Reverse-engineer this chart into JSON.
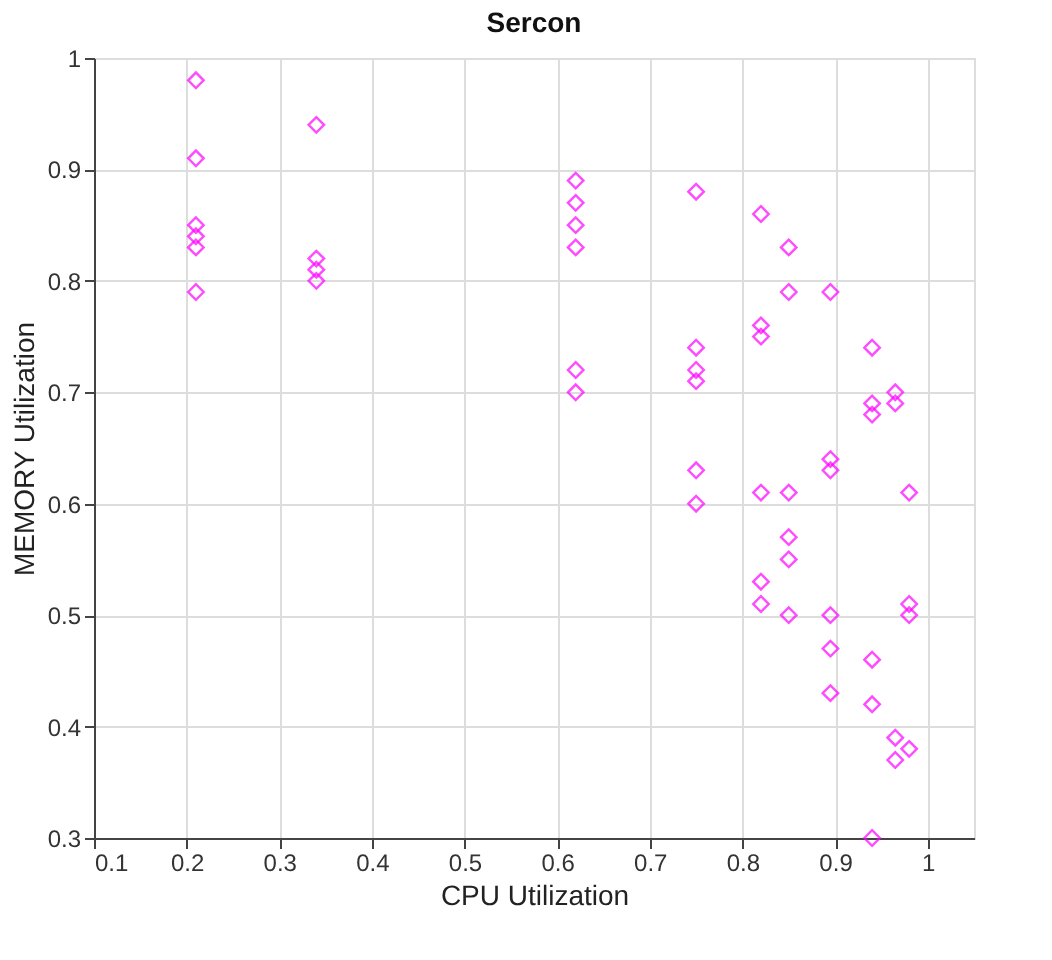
{
  "chart_data": {
    "type": "scatter",
    "title": "Sercon",
    "xlabel": "CPU Utilization",
    "ylabel": "MEMORY Utilization",
    "x": [
      0.21,
      0.21,
      0.21,
      0.21,
      0.21,
      0.21,
      0.34,
      0.34,
      0.34,
      0.34,
      0.62,
      0.62,
      0.62,
      0.62,
      0.62,
      0.62,
      0.75,
      0.75,
      0.75,
      0.75,
      0.75,
      0.75,
      0.82,
      0.82,
      0.82,
      0.82,
      0.82,
      0.82,
      0.85,
      0.85,
      0.85,
      0.85,
      0.85,
      0.85,
      0.895,
      0.895,
      0.895,
      0.895,
      0.895,
      0.895,
      0.94,
      0.94,
      0.94,
      0.94,
      0.94,
      0.94,
      0.965,
      0.965,
      0.965,
      0.965,
      0.98,
      0.98,
      0.98,
      0.98
    ],
    "series": [
      {
        "color": "#ff00ff",
        "values": [
          0.98,
          0.91,
          0.85,
          0.84,
          0.83,
          0.79,
          0.94,
          0.82,
          0.81,
          0.8,
          0.89,
          0.87,
          0.85,
          0.83,
          0.72,
          0.7,
          0.88,
          0.74,
          0.72,
          0.71,
          0.63,
          0.6,
          0.86,
          0.76,
          0.75,
          0.61,
          0.53,
          0.51,
          0.83,
          0.79,
          0.61,
          0.57,
          0.55,
          0.5,
          0.79,
          0.64,
          0.63,
          0.5,
          0.47,
          0.43,
          0.74,
          0.69,
          0.68,
          0.46,
          0.42,
          0.3,
          0.7,
          0.69,
          0.39,
          0.37,
          0.61,
          0.51,
          0.5,
          0.38
        ]
      }
    ],
    "xlim": [
      0.1,
      1.05
    ],
    "xticks": [
      0.1,
      0.2,
      0.3,
      0.4,
      0.5,
      0.6,
      0.7,
      0.8,
      0.9,
      1
    ],
    "ylim": [
      0.3,
      1
    ],
    "yticks": [
      0.3,
      0.4,
      0.5,
      0.6,
      0.7,
      0.8,
      0.9,
      1
    ],
    "grid": true,
    "marker": "diamond"
  }
}
